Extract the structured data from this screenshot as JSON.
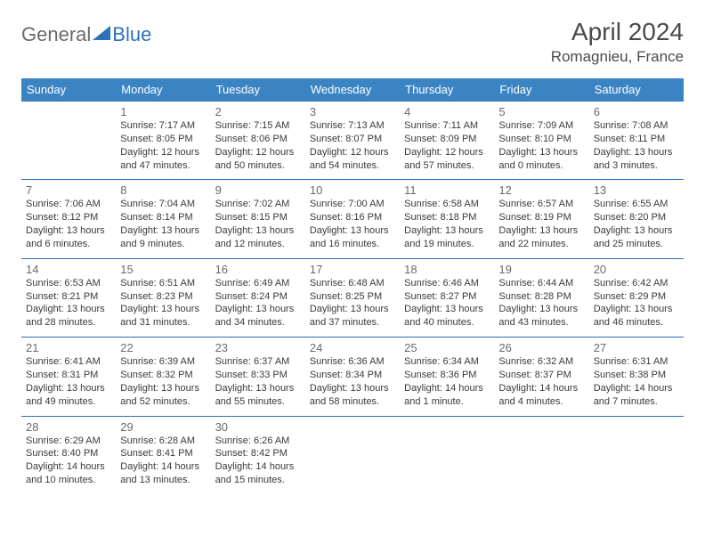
{
  "logo": {
    "general": "General",
    "blue": "Blue"
  },
  "title": "April 2024",
  "location": "Romagnieu, France",
  "colors": {
    "header_bg": "#3b84c4",
    "header_text": "#ffffff",
    "row_border": "#2d71b8",
    "daynum": "#6b6b6b",
    "body_text": "#3a3a3a",
    "title_text": "#4a4a4a",
    "logo_gray": "#6b6b6b",
    "logo_blue": "#2d71b8",
    "background": "#ffffff"
  },
  "typography": {
    "title_fontsize": 28,
    "location_fontsize": 17,
    "dayheader_fontsize": 13,
    "daynum_fontsize": 13,
    "cell_fontsize": 11
  },
  "layout": {
    "columns": 7,
    "rows": 5,
    "first_weekday_offset": 1
  },
  "weekdays": [
    "Sunday",
    "Monday",
    "Tuesday",
    "Wednesday",
    "Thursday",
    "Friday",
    "Saturday"
  ],
  "days": [
    {
      "n": "1",
      "sr": "7:17 AM",
      "ss": "8:05 PM",
      "dl": "12 hours and 47 minutes."
    },
    {
      "n": "2",
      "sr": "7:15 AM",
      "ss": "8:06 PM",
      "dl": "12 hours and 50 minutes."
    },
    {
      "n": "3",
      "sr": "7:13 AM",
      "ss": "8:07 PM",
      "dl": "12 hours and 54 minutes."
    },
    {
      "n": "4",
      "sr": "7:11 AM",
      "ss": "8:09 PM",
      "dl": "12 hours and 57 minutes."
    },
    {
      "n": "5",
      "sr": "7:09 AM",
      "ss": "8:10 PM",
      "dl": "13 hours and 0 minutes."
    },
    {
      "n": "6",
      "sr": "7:08 AM",
      "ss": "8:11 PM",
      "dl": "13 hours and 3 minutes."
    },
    {
      "n": "7",
      "sr": "7:06 AM",
      "ss": "8:12 PM",
      "dl": "13 hours and 6 minutes."
    },
    {
      "n": "8",
      "sr": "7:04 AM",
      "ss": "8:14 PM",
      "dl": "13 hours and 9 minutes."
    },
    {
      "n": "9",
      "sr": "7:02 AM",
      "ss": "8:15 PM",
      "dl": "13 hours and 12 minutes."
    },
    {
      "n": "10",
      "sr": "7:00 AM",
      "ss": "8:16 PM",
      "dl": "13 hours and 16 minutes."
    },
    {
      "n": "11",
      "sr": "6:58 AM",
      "ss": "8:18 PM",
      "dl": "13 hours and 19 minutes."
    },
    {
      "n": "12",
      "sr": "6:57 AM",
      "ss": "8:19 PM",
      "dl": "13 hours and 22 minutes."
    },
    {
      "n": "13",
      "sr": "6:55 AM",
      "ss": "8:20 PM",
      "dl": "13 hours and 25 minutes."
    },
    {
      "n": "14",
      "sr": "6:53 AM",
      "ss": "8:21 PM",
      "dl": "13 hours and 28 minutes."
    },
    {
      "n": "15",
      "sr": "6:51 AM",
      "ss": "8:23 PM",
      "dl": "13 hours and 31 minutes."
    },
    {
      "n": "16",
      "sr": "6:49 AM",
      "ss": "8:24 PM",
      "dl": "13 hours and 34 minutes."
    },
    {
      "n": "17",
      "sr": "6:48 AM",
      "ss": "8:25 PM",
      "dl": "13 hours and 37 minutes."
    },
    {
      "n": "18",
      "sr": "6:46 AM",
      "ss": "8:27 PM",
      "dl": "13 hours and 40 minutes."
    },
    {
      "n": "19",
      "sr": "6:44 AM",
      "ss": "8:28 PM",
      "dl": "13 hours and 43 minutes."
    },
    {
      "n": "20",
      "sr": "6:42 AM",
      "ss": "8:29 PM",
      "dl": "13 hours and 46 minutes."
    },
    {
      "n": "21",
      "sr": "6:41 AM",
      "ss": "8:31 PM",
      "dl": "13 hours and 49 minutes."
    },
    {
      "n": "22",
      "sr": "6:39 AM",
      "ss": "8:32 PM",
      "dl": "13 hours and 52 minutes."
    },
    {
      "n": "23",
      "sr": "6:37 AM",
      "ss": "8:33 PM",
      "dl": "13 hours and 55 minutes."
    },
    {
      "n": "24",
      "sr": "6:36 AM",
      "ss": "8:34 PM",
      "dl": "13 hours and 58 minutes."
    },
    {
      "n": "25",
      "sr": "6:34 AM",
      "ss": "8:36 PM",
      "dl": "14 hours and 1 minute."
    },
    {
      "n": "26",
      "sr": "6:32 AM",
      "ss": "8:37 PM",
      "dl": "14 hours and 4 minutes."
    },
    {
      "n": "27",
      "sr": "6:31 AM",
      "ss": "8:38 PM",
      "dl": "14 hours and 7 minutes."
    },
    {
      "n": "28",
      "sr": "6:29 AM",
      "ss": "8:40 PM",
      "dl": "14 hours and 10 minutes."
    },
    {
      "n": "29",
      "sr": "6:28 AM",
      "ss": "8:41 PM",
      "dl": "14 hours and 13 minutes."
    },
    {
      "n": "30",
      "sr": "6:26 AM",
      "ss": "8:42 PM",
      "dl": "14 hours and 15 minutes."
    }
  ],
  "labels": {
    "sunrise": "Sunrise: ",
    "sunset": "Sunset: ",
    "daylight": "Daylight: "
  }
}
